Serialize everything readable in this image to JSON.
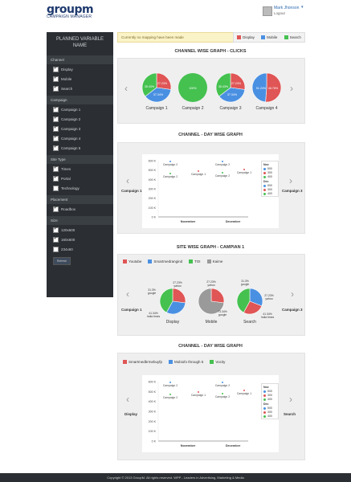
{
  "header": {
    "logo": "groupm",
    "subtitle": "CAMPAIGN MANAGER",
    "user_name": "Mark Jhonson",
    "logout": "Logout"
  },
  "sidebar": {
    "title": "PLANNED VARIABLE NAME",
    "sections": [
      {
        "title": "Channel",
        "items": [
          {
            "label": "Display",
            "checked": true
          },
          {
            "label": "Mobile",
            "checked": true
          },
          {
            "label": "Search",
            "checked": true
          }
        ]
      },
      {
        "title": "Campaign",
        "items": [
          {
            "label": "Campaign 1",
            "checked": true
          },
          {
            "label": "Campaign 2",
            "checked": true
          },
          {
            "label": "Campaign 3",
            "checked": true
          },
          {
            "label": "Campaign 4",
            "checked": true
          },
          {
            "label": "Campaign 5",
            "checked": true
          }
        ]
      },
      {
        "title": "Site Type",
        "items": [
          {
            "label": "Times",
            "checked": true
          },
          {
            "label": "Portal",
            "checked": true
          },
          {
            "label": "Technology",
            "checked": false
          }
        ]
      },
      {
        "title": "Placement",
        "items": [
          {
            "label": "Roadbox",
            "checked": true
          }
        ]
      },
      {
        "title": "Size",
        "items": [
          {
            "label": "120x600",
            "checked": true
          },
          {
            "label": "160x600",
            "checked": true
          },
          {
            "label": "234x60",
            "checked": false
          }
        ]
      }
    ],
    "button": "Refresh"
  },
  "notice": "Currently no mapping have been made",
  "top_legend": [
    "Display",
    "Mobile",
    "Search"
  ],
  "colors": {
    "red": "#e05555",
    "blue": "#4a90e2",
    "green": "#45c150",
    "gray": "#9a9a9a",
    "sidebar": "#2b2f33"
  },
  "section1": {
    "title": "CHANNEL WISE GRAPH - CLICKS",
    "campaigns": [
      {
        "label": "Campaign 1",
        "slices": [
          {
            "name": "Display",
            "value": 27.23
          },
          {
            "name": "Mobile",
            "value": 37.34
          },
          {
            "name": "Search",
            "value": 35.43
          }
        ],
        "texts": [
          "27.23%",
          "37.34%",
          "35.43%"
        ]
      },
      {
        "label": "Campaign 2",
        "slices": [
          {
            "name": "Search",
            "value": 100
          }
        ],
        "texts": [
          "100%"
        ]
      },
      {
        "label": "Campaign 3",
        "slices": [
          {
            "name": "Display",
            "value": 27.23
          },
          {
            "name": "Mobile",
            "value": 37.34
          },
          {
            "name": "Search",
            "value": 35.43
          }
        ],
        "texts": [
          "27.23%",
          "37.34%",
          "35.43%"
        ]
      },
      {
        "label": "Campaign 4",
        "slices": [
          {
            "name": "Display",
            "value": 51.24
          },
          {
            "name": "Mobile",
            "value": 48.76
          }
        ],
        "texts": [
          "51.24%",
          "48.76%"
        ]
      }
    ]
  },
  "section2": {
    "title": "CHANNEL - DAY WISE GRAPH",
    "left_label": "Campaign 1",
    "right_label": "Campaign 3",
    "y_ticks": [
      "600 K",
      "500 K",
      "400 K",
      "300 K",
      "200 K",
      "100 K",
      "0 K"
    ],
    "x_ticks": [
      "November",
      "December"
    ],
    "points": [
      "Campaign 2",
      "Campaign 1",
      "Campaign 2",
      "Campaign 2",
      "Campaign 1",
      "Campaign 2"
    ],
    "legend_nov": "Nov",
    "legend_dec": "Dec",
    "legend_vals": [
      "500",
      "300",
      "400"
    ]
  },
  "section3": {
    "title": "SITE WISE GRAPH - CAMPIAN 1",
    "left_label": "Campaign 1",
    "right_label": "Campaign 3",
    "legend": [
      "Youtube",
      "Smartmedrangind",
      "TOI",
      "Kaime"
    ],
    "pies": [
      {
        "label": "Display",
        "texts": [
          "27.23%\nyahoo",
          "31.3%\ngoogle",
          "41.34%\nIndia times"
        ]
      },
      {
        "label": "Mobile",
        "texts": [
          "27.23%\nyahoo",
          "73.34%\ngoogle"
        ]
      },
      {
        "label": "Search",
        "texts": [
          "31.3%\ngoogle",
          "27.23%\nyahoo",
          "41.34%\nIndia times"
        ]
      }
    ]
  },
  "section4": {
    "title": "CHANNEL - DAY WISE GRAPH",
    "left_label": "Display",
    "right_label": "Search",
    "legend": [
      "Smartmedbrmebuyfp",
      "Mobiofo through 5",
      "Vocity"
    ],
    "y_ticks": [
      "600 K",
      "500 K",
      "400 K",
      "300 K",
      "200 K",
      "100 K",
      "0 K"
    ],
    "x_ticks": [
      "November",
      "December"
    ],
    "points": [
      "Campaign 2",
      "Campaign 1",
      "Campaign 2",
      "Campaign 2",
      "Campaign 1",
      "Campaign 2"
    ],
    "legend_nov": "Nov",
    "legend_dec": "Dec",
    "legend_vals": [
      "500",
      "300",
      "400"
    ]
  },
  "footer": "Copyright © 2013 GroupM. All rights reserved. WPP - Leaders in Advertising, Marketing & Media"
}
